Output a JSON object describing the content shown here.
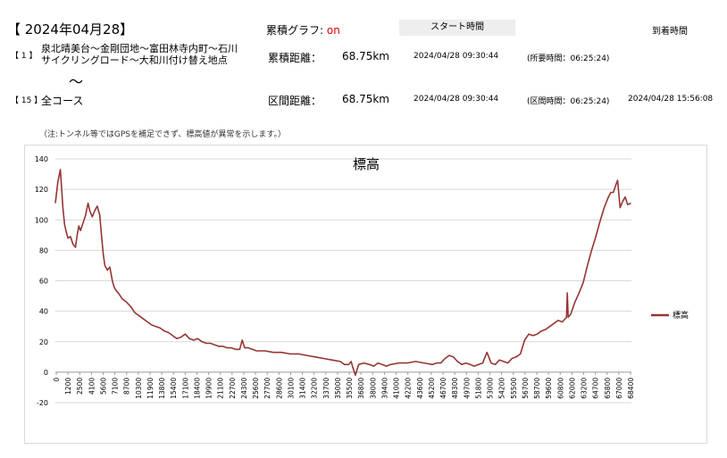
{
  "header": {
    "date": "【 2024年04月28】",
    "graph_label": "累積グラフ:",
    "graph_state": "on",
    "start_time_label": "スタート時間",
    "arrival_time_label": "到着時間"
  },
  "segment": {
    "index": "【 1 】",
    "route_line1": "泉北晴美台～金剛団地～富田林寺内町～石川",
    "route_line2": "サイクリングロード～大和川付け替え地点",
    "tilde": "～",
    "cum_dist_label": "累積距離：",
    "cum_dist_value": "68.75km",
    "start": "2024/04/28 09:30:44",
    "required_time": "(所要時間：06:25:24)"
  },
  "course": {
    "index": "【 15 】",
    "name": "全コース",
    "section_dist_label": "区間距離：",
    "section_dist_value": "68.75km",
    "start": "2024/04/28 09:30:44",
    "section_time": "(区間時間：06:25:24)",
    "arrival": "2024/04/28 15:56:08"
  },
  "note": "（注:トンネル等ではGPSを補足できず、標高値が異常を示します。）",
  "colors": {
    "series": "#943634",
    "on_text": "#e00000"
  },
  "chart_data": {
    "type": "line",
    "title": "標高",
    "xlabel": "",
    "ylabel": "",
    "xlim": [
      0,
      68750
    ],
    "ylim": [
      -20,
      140
    ],
    "yticks": [
      "-20",
      "0",
      "20",
      "40",
      "60",
      "80",
      "100",
      "120",
      "140"
    ],
    "xticks": [
      "0",
      "1200",
      "2500",
      "4100",
      "5600",
      "7100",
      "8700",
      "10300",
      "11900",
      "13800",
      "15400",
      "17100",
      "18400",
      "19900",
      "21100",
      "22700",
      "24300",
      "25600",
      "27700",
      "28600",
      "30100",
      "31400",
      "32200",
      "33700",
      "35000",
      "35500",
      "36800",
      "38000",
      "39400",
      "41000",
      "42200",
      "43600",
      "45200",
      "46700",
      "48300",
      "49700",
      "51800",
      "53000",
      "54200",
      "55500",
      "56700",
      "58700",
      "59600",
      "60800",
      "62000",
      "63200",
      "64700",
      "65800",
      "67000",
      "68400"
    ],
    "grid": "horizontal",
    "legend": "right",
    "series": [
      {
        "name": "標高",
        "x": [
          0,
          300,
          600,
          900,
          1100,
          1300,
          1500,
          1800,
          2100,
          2400,
          2600,
          2800,
          3000,
          3300,
          3600,
          3900,
          4100,
          4400,
          4700,
          5000,
          5300,
          5500,
          5700,
          5900,
          6200,
          6500,
          6800,
          7000,
          7200,
          7500,
          8000,
          8500,
          9000,
          9500,
          10000,
          10500,
          11000,
          11500,
          12000,
          12500,
          13000,
          13500,
          14000,
          14500,
          15000,
          15500,
          16000,
          16500,
          17000,
          17500,
          18000,
          18500,
          19000,
          19500,
          20000,
          20500,
          21000,
          21500,
          22000,
          22300,
          22600,
          23000,
          23500,
          24000,
          25000,
          26000,
          27000,
          28000,
          29000,
          30000,
          31000,
          32000,
          33000,
          34000,
          34500,
          35000,
          35300,
          35500,
          35800,
          36200,
          36800,
          37500,
          38000,
          38500,
          39000,
          39500,
          40000,
          41000,
          42000,
          43000,
          44000,
          45000,
          45500,
          46000,
          46500,
          47000,
          47500,
          48000,
          48500,
          49000,
          49500,
          50000,
          50500,
          51000,
          51500,
          52000,
          52500,
          53000,
          53500,
          54000,
          54500,
          55000,
          55500,
          56000,
          56500,
          57000,
          57500,
          58000,
          58500,
          59000,
          59500,
          60000,
          60500,
          61000,
          61100,
          61200,
          61500,
          62000,
          62500,
          63000,
          63500,
          64000,
          64500,
          65000,
          65500,
          66000,
          66300,
          66600,
          66900,
          67100,
          67400,
          67700,
          68000,
          68300,
          68700
        ],
        "values": [
          111,
          125,
          133,
          108,
          97,
          92,
          88,
          89,
          84,
          82,
          90,
          96,
          93,
          98,
          103,
          111,
          106,
          102,
          106,
          109,
          103,
          90,
          78,
          70,
          67,
          69,
          60,
          56,
          54,
          52,
          48,
          46,
          43,
          39,
          37,
          35,
          33,
          31,
          30,
          29,
          27,
          26,
          24,
          22,
          23,
          25,
          22,
          21,
          22,
          20,
          19,
          19,
          18,
          17,
          17,
          16,
          16,
          15,
          15,
          21,
          16,
          16,
          15,
          14,
          14,
          13,
          13,
          12,
          12,
          11,
          10,
          9,
          8,
          7,
          5,
          5,
          7,
          3,
          -2,
          5,
          6,
          5,
          4,
          6,
          5,
          4,
          5,
          6,
          6,
          7,
          6,
          5,
          6,
          6,
          9,
          11,
          10,
          7,
          5,
          6,
          5,
          4,
          5,
          6,
          13,
          6,
          5,
          8,
          7,
          6,
          9,
          10,
          12,
          21,
          25,
          24,
          25,
          27,
          28,
          30,
          32,
          34,
          33,
          36,
          52,
          36,
          38,
          46,
          52,
          59,
          70,
          80,
          89,
          99,
          108,
          115,
          118,
          118,
          123,
          126,
          108,
          112,
          115,
          110,
          111
        ]
      }
    ]
  }
}
